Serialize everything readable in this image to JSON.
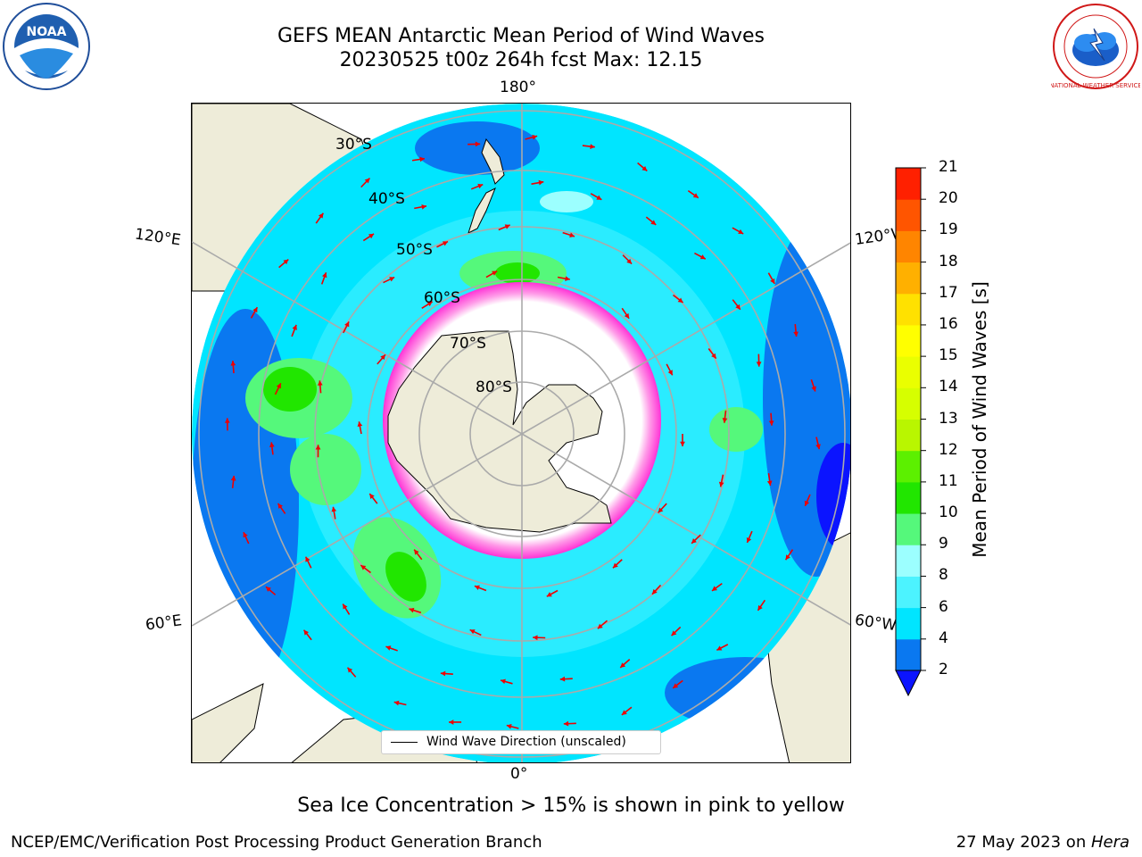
{
  "title": {
    "line1": "GEFS MEAN Antarctic Mean Period of Wind Waves",
    "line2": "20230525 t00z 264h fcst   Max: 12.15"
  },
  "logos": {
    "left": "NOAA",
    "right": "NATIONAL WEATHER SERVICE"
  },
  "map": {
    "projection": "south-polar-stereographic",
    "longitude_labels": {
      "top": "180°",
      "bottom": "0°",
      "upper_left": "120°E",
      "lower_left": "60°E",
      "upper_right": "120°W",
      "lower_right": "60°W"
    },
    "latitude_labels": [
      "30°S",
      "40°S",
      "50°S",
      "60°S",
      "70°S",
      "80°S"
    ],
    "legend_label": "Wind Wave Direction (unscaled)",
    "colors": {
      "land": "#eeecd9",
      "ocean_2_4": "#0a78f0",
      "ocean_4_6": "#00e5ff",
      "ocean_6_8": "#4cf3ff",
      "ocean_8_9": "#9cffff",
      "ocean_9_10": "#55f87b",
      "ocean_10_11": "#21e600",
      "sea_ice": "#ff33d6",
      "arrows": "#ee0000"
    }
  },
  "colorbar": {
    "label": "Mean Period of Wind Waves [s]",
    "ticks": [
      "2",
      "4",
      "6",
      "8",
      "9",
      "10",
      "11",
      "12",
      "13",
      "14",
      "15",
      "16",
      "17",
      "18",
      "19",
      "20",
      "21"
    ],
    "colors": [
      "#0a78f0",
      "#00e5ff",
      "#4cf3ff",
      "#9cffff",
      "#55f87b",
      "#21e600",
      "#5cf000",
      "#b9f600",
      "#d6ff00",
      "#eaff00",
      "#ffff00",
      "#ffe100",
      "#ffb000",
      "#ff8500",
      "#ff5500",
      "#ff2000"
    ],
    "extend_min_color": "#0b14ff"
  },
  "note": "Sea Ice Concentration > 15% is shown in pink to yellow",
  "footer": {
    "left": "NCEP/EMC/Verification Post Processing Product Generation Branch",
    "right_prefix": "27 May 2023 on ",
    "right_italic": "Hera"
  }
}
